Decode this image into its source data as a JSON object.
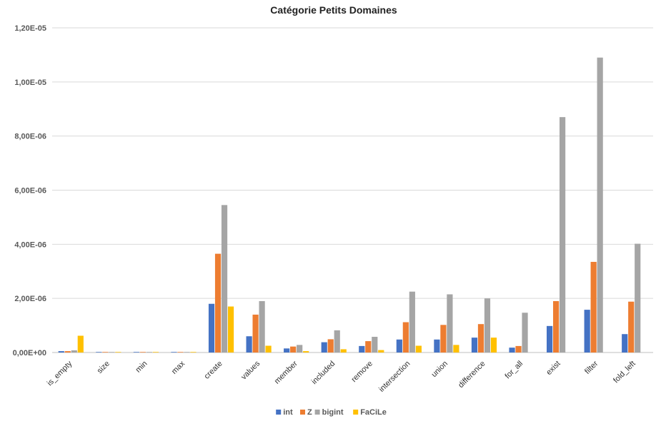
{
  "chart_data": {
    "type": "bar",
    "title": "Catégorie Petits Domaines",
    "xlabel": "",
    "ylabel": "",
    "categories": [
      "is_empty",
      "size",
      "min",
      "max",
      "create",
      "values",
      "member",
      "included",
      "remove",
      "intersection",
      "union",
      "difference",
      "for_all",
      "exist",
      "filter",
      "fold_left"
    ],
    "series": [
      {
        "name": "int",
        "color": "#4472C4",
        "values": [
          5e-08,
          2e-08,
          2e-08,
          2e-08,
          1.8e-06,
          6e-07,
          1.5e-07,
          3.8e-07,
          2.4e-07,
          4.8e-07,
          4.8e-07,
          5.5e-07,
          1.8e-07,
          9.8e-07,
          1.58e-06,
          6.8e-07
        ]
      },
      {
        "name": "Z",
        "color": "#ED7D31",
        "values": [
          5e-08,
          2e-08,
          2e-08,
          2e-08,
          3.65e-06,
          1.4e-06,
          2.2e-07,
          4.9e-07,
          4.2e-07,
          1.12e-06,
          1.02e-06,
          1.05e-06,
          2.4e-07,
          1.9e-06,
          3.35e-06,
          1.88e-06
        ]
      },
      {
        "name": "bigint",
        "color": "#A5A5A5",
        "values": [
          8e-08,
          2e-08,
          2e-08,
          2e-08,
          5.45e-06,
          1.9e-06,
          2.8e-07,
          8.2e-07,
          5.8e-07,
          2.25e-06,
          2.15e-06,
          2e-06,
          1.47e-06,
          8.7e-06,
          1.09e-05,
          4.02e-06
        ]
      },
      {
        "name": "FaCiLe",
        "color": "#FFC000",
        "values": [
          6.2e-07,
          2e-08,
          2e-08,
          2e-08,
          1.7e-06,
          2.5e-07,
          5e-08,
          1.2e-07,
          9e-08,
          2.5e-07,
          2.8e-07,
          5.5e-07,
          0,
          0,
          0,
          0
        ]
      }
    ],
    "ylim": [
      0,
      1.2e-05
    ],
    "yticks": [
      0,
      2e-06,
      4e-06,
      6e-06,
      8e-06,
      1e-05,
      1.2e-05
    ],
    "ytick_labels": [
      "0,00E+00",
      "2,00E-06",
      "4,00E-06",
      "6,00E-06",
      "8,00E-06",
      "1,00E-05",
      "1,20E-05"
    ],
    "grid": true,
    "legend_position": "bottom"
  }
}
